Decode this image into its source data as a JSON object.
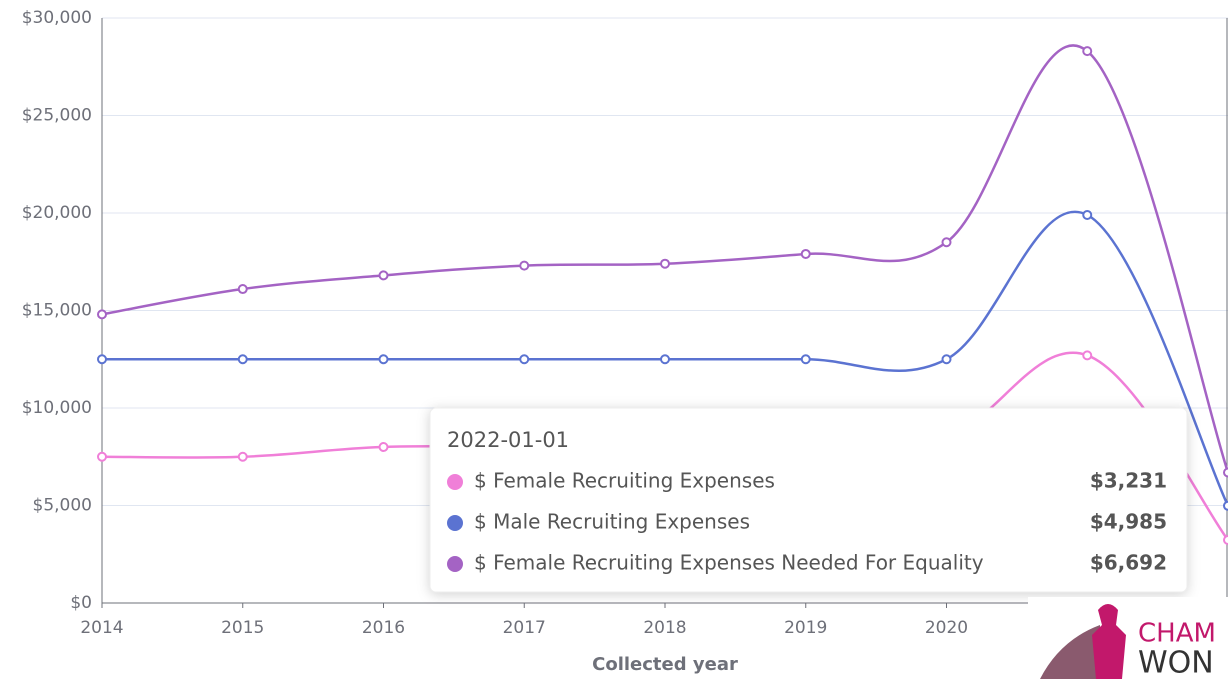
{
  "chart_data": {
    "type": "line",
    "xlabel": "Collected year",
    "categories": [
      "2014",
      "2015",
      "2016",
      "2017",
      "2018",
      "2019",
      "2020",
      null,
      null
    ],
    "series": [
      {
        "name": "$ Female Recruiting Expenses",
        "color": "#f07fd8",
        "values": [
          7500,
          7500,
          8000,
          8000,
          8000,
          8200,
          8500,
          12700,
          3231
        ],
        "value_labels": [
          null,
          null,
          null,
          null,
          null,
          null,
          null,
          null,
          "$3,231"
        ]
      },
      {
        "name": "$ Male Recruiting Expenses",
        "color": "#5b73d1",
        "values": [
          12500,
          12500,
          12500,
          12500,
          12500,
          12500,
          12500,
          19900,
          4985
        ],
        "value_labels": [
          null,
          null,
          null,
          null,
          null,
          null,
          null,
          null,
          "$4,985"
        ]
      },
      {
        "name": "$ Female Recruiting Expenses Needed For Equality",
        "color": "#a463c4",
        "values": [
          14800,
          16100,
          16800,
          17300,
          17400,
          17900,
          18500,
          28300,
          6692
        ],
        "value_labels": [
          null,
          null,
          null,
          null,
          null,
          null,
          null,
          null,
          "$6,692"
        ]
      }
    ],
    "ylim": [
      0,
      30000
    ],
    "yticks": [
      {
        "value": 0,
        "label": "$0"
      },
      {
        "value": 5000,
        "label": "$5,000"
      },
      {
        "value": 10000,
        "label": "$10,000"
      },
      {
        "value": 15000,
        "label": "$15,000"
      },
      {
        "value": 20000,
        "label": "$20,000"
      },
      {
        "value": 25000,
        "label": "$25,000"
      },
      {
        "value": 30000,
        "label": "$30,000"
      }
    ],
    "grid": true,
    "tooltip": {
      "title": "2022-01-01",
      "index": 8
    },
    "logo_text": [
      "CHAM",
      "WON"
    ]
  }
}
